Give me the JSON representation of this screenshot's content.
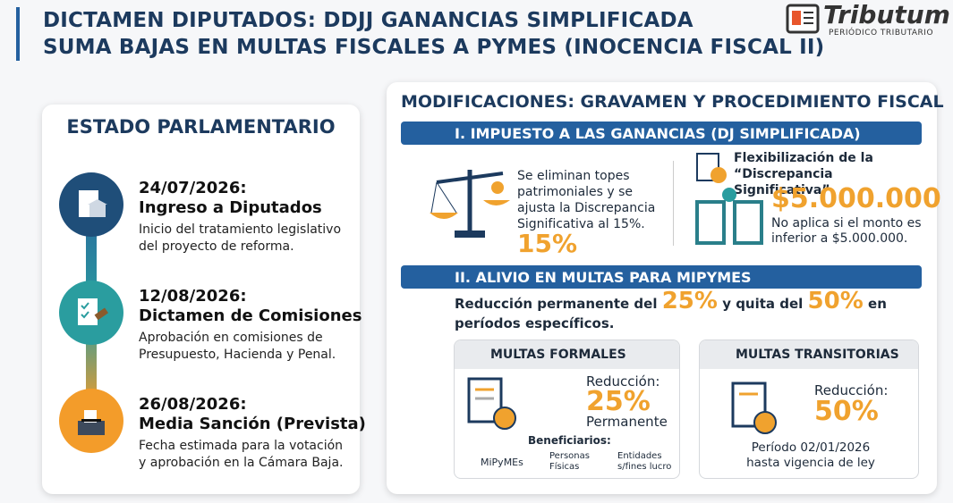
{
  "header": {
    "title_lines": [
      "DICTAMEN DIPUTADOS:  DDJJ GANANCIAS SIMPLIFICADA",
      "SUMA BAJAS EN MULTAS FISCALES A PYMES (INOCENCIA FISCAL II)"
    ],
    "logo": {
      "name": "Tributum",
      "tagline": "PERIÓDICO TRIBUTARIO"
    }
  },
  "status": {
    "title": "ESTADO PARLAMENTARIO",
    "steps": [
      {
        "date": "24/07/2026:",
        "title": "Ingreso a Diputados",
        "description": "Inicio del tratamiento legislativo del proyecto de reforma."
      },
      {
        "date": "12/08/2026:",
        "title": "Dictamen de Comisiones",
        "description": "Aprobación en comisiones de Presupuesto, Hacienda y Penal."
      },
      {
        "date": "26/08/2026:",
        "title": "Media Sanción (Prevista)",
        "description": "Fecha estimada para la votación y aprobación en la Cámara Baja."
      }
    ]
  },
  "modifications": {
    "title": "MODIFICACIONES: GRAVAMEN Y PROCEDIMIENTO FISCAL",
    "section1": {
      "title": "I. IMPUESTO A LAS GANANCIAS (DJ SIMPLIFICADA)",
      "text": "Se eliminan topes patrimoniales y se ajusta la Discrepancia Significativa al 15%.",
      "highlight": "15%",
      "heading": "Flexibilización de la “Discrepancia Significativa”",
      "amount": "$5.000.000",
      "note": "No aplica si el monto es inferior a $5.000.000."
    },
    "section2": {
      "title": "II. ALIVIO EN MULTAS PARA MIPYMES",
      "summary": [
        "Reducción permanente del",
        "25%",
        "y quita del",
        "50%",
        "en períodos específicos."
      ],
      "formal": {
        "title": "MULTAS FORMALES",
        "label": "Reducción:",
        "value": "25%",
        "sub": "Permanente",
        "beneficiaries_title": "Beneficiarios:",
        "beneficiaries": [
          "MiPyMEs",
          "Personas Físicas",
          "Entidades s/fines lucro"
        ]
      },
      "transitory": {
        "title": "MULTAS TRANSITORIAS",
        "label": "Reducción:",
        "value": "50%",
        "period": "Período 02/01/2026 hasta vigencia de ley"
      }
    }
  }
}
